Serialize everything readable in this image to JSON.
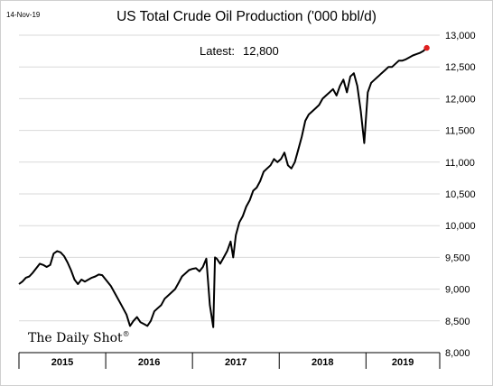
{
  "chart_data": {
    "type": "line",
    "date_label": "14-Nov-19",
    "title": "US Total Crude Oil Production ('000 bbl/d)",
    "annotation": {
      "label": "Latest:",
      "value": "12,800"
    },
    "brand": "The Daily Shot",
    "brand_mark": "®",
    "xlabel": "",
    "ylabel": "",
    "xlim": [
      2015.0,
      2019.85
    ],
    "ylim": [
      8000,
      13000
    ],
    "yticks": [
      8000,
      8500,
      9000,
      9500,
      10000,
      10500,
      11000,
      11500,
      12000,
      12500,
      13000
    ],
    "ytick_labels": [
      "8,000",
      "8,500",
      "9,000",
      "9,500",
      "10,000",
      "10,500",
      "11,000",
      "11,500",
      "12,000",
      "12,500",
      "13,000"
    ],
    "xticks": [
      "2015",
      "2016",
      "2017",
      "2018",
      "2019"
    ],
    "y_axis_side": "right",
    "grid": "horizontal",
    "line_color": "#000000",
    "latest_marker_color": "#e02020",
    "series": [
      {
        "x": [
          2015.0,
          2015.04,
          2015.08,
          2015.12,
          2015.16,
          2015.2,
          2015.24,
          2015.28,
          2015.32,
          2015.36,
          2015.4,
          2015.44,
          2015.48,
          2015.52,
          2015.56,
          2015.6,
          2015.64,
          2015.68,
          2015.72,
          2015.76,
          2015.8,
          2015.84,
          2015.88,
          2015.92,
          2015.96,
          2016.0,
          2016.06,
          2016.12,
          2016.18,
          2016.24,
          2016.28,
          2016.32,
          2016.36,
          2016.4,
          2016.44,
          2016.48,
          2016.52,
          2016.56,
          2016.6,
          2016.64,
          2016.68,
          2016.72,
          2016.76,
          2016.8,
          2016.84,
          2016.88,
          2016.92,
          2016.96,
          2017.0,
          2017.04,
          2017.08,
          2017.12,
          2017.16,
          2017.2,
          2017.24,
          2017.26,
          2017.28,
          2017.32,
          2017.36,
          2017.4,
          2017.44,
          2017.47,
          2017.5,
          2017.54,
          2017.58,
          2017.62,
          2017.66,
          2017.7,
          2017.74,
          2017.78,
          2017.82,
          2017.86,
          2017.9,
          2017.94,
          2017.98,
          2018.02,
          2018.06,
          2018.1,
          2018.14,
          2018.18,
          2018.22,
          2018.26,
          2018.3,
          2018.34,
          2018.38,
          2018.42,
          2018.46,
          2018.5,
          2018.54,
          2018.58,
          2018.62,
          2018.66,
          2018.7,
          2018.74,
          2018.78,
          2018.82,
          2018.86,
          2018.9,
          2018.94,
          2018.98,
          2019.02,
          2019.06,
          2019.1,
          2019.14,
          2019.18,
          2019.22,
          2019.26,
          2019.3,
          2019.34,
          2019.38,
          2019.42,
          2019.46,
          2019.5,
          2019.54,
          2019.58,
          2019.62,
          2019.66,
          2019.7
        ],
        "values": [
          9080,
          9120,
          9180,
          9200,
          9260,
          9330,
          9400,
          9380,
          9350,
          9380,
          9560,
          9600,
          9580,
          9520,
          9420,
          9300,
          9150,
          9080,
          9150,
          9120,
          9150,
          9180,
          9200,
          9230,
          9220,
          9150,
          9050,
          8900,
          8750,
          8600,
          8420,
          8500,
          8560,
          8480,
          8450,
          8420,
          8500,
          8650,
          8700,
          8750,
          8850,
          8900,
          8950,
          9000,
          9100,
          9200,
          9250,
          9300,
          9320,
          9330,
          9280,
          9350,
          9480,
          8750,
          8400,
          9500,
          9480,
          9400,
          9500,
          9600,
          9750,
          9500,
          9850,
          10050,
          10150,
          10300,
          10400,
          10550,
          10600,
          10700,
          10850,
          10900,
          10950,
          11050,
          11000,
          11050,
          11150,
          10950,
          10900,
          11000,
          11200,
          11400,
          11650,
          11750,
          11800,
          11850,
          11900,
          12000,
          12050,
          12100,
          12150,
          12050,
          12200,
          12300,
          12100,
          12350,
          12400,
          12200,
          11800,
          11300,
          12100,
          12250,
          12300,
          12350,
          12400,
          12450,
          12500,
          12500,
          12550,
          12600,
          12600,
          12620,
          12650,
          12680,
          12700,
          12720,
          12750,
          12800
        ]
      }
    ],
    "latest": {
      "x": 2019.7,
      "y": 12800
    }
  }
}
